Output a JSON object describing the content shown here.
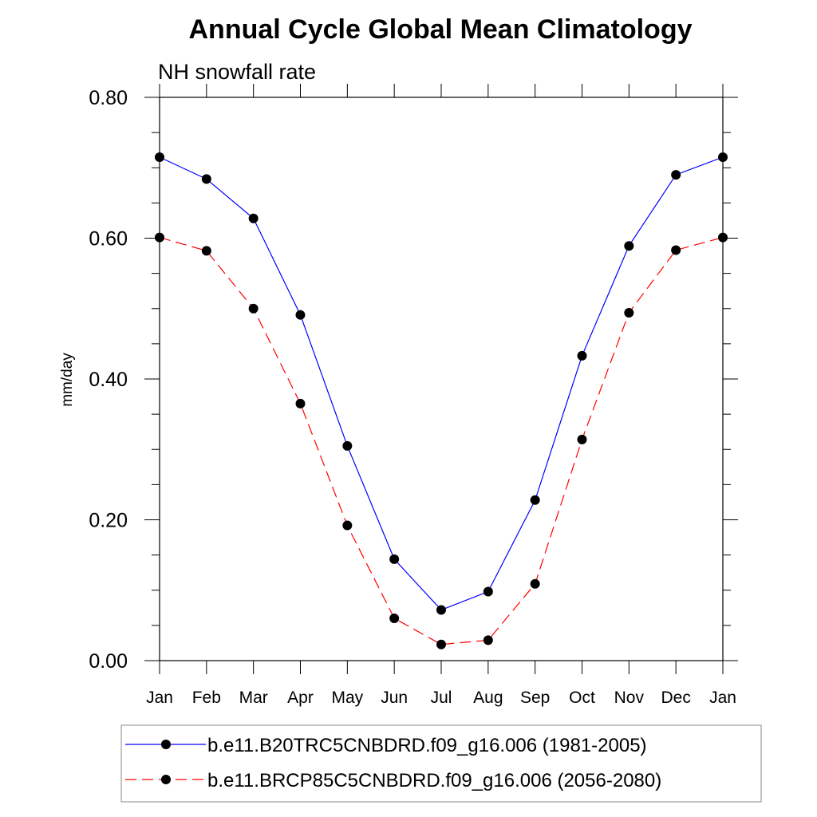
{
  "chart_data": {
    "type": "line",
    "title": "Annual Cycle Global Mean Climatology",
    "subtitle": "NH snowfall rate",
    "xlabel": "",
    "ylabel": "mm/day",
    "categories": [
      "Jan",
      "Feb",
      "Mar",
      "Apr",
      "May",
      "Jun",
      "Jul",
      "Aug",
      "Sep",
      "Oct",
      "Nov",
      "Dec",
      "Jan"
    ],
    "ylim": [
      0.0,
      0.8
    ],
    "yticks": [
      0.0,
      0.2,
      0.4,
      0.6,
      0.8
    ],
    "ytick_labels": [
      "0.00",
      "0.20",
      "0.40",
      "0.60",
      "0.80"
    ],
    "yminor_step": 0.05,
    "grid": false,
    "legend_position": "bottom",
    "series": [
      {
        "name": "b.e11.B20TRC5CNBDRD.f09_g16.006 (1981-2005)",
        "color": "#0000ff",
        "dash": "solid",
        "marker": "filled-circle",
        "values": [
          0.715,
          0.684,
          0.628,
          0.491,
          0.305,
          0.144,
          0.072,
          0.098,
          0.228,
          0.433,
          0.589,
          0.69,
          0.715
        ]
      },
      {
        "name": "b.e11.BRCP85C5CNBDRD.f09_g16.006 (2056-2080)",
        "color": "#ff0000",
        "dash": "dashed",
        "marker": "filled-circle",
        "values": [
          0.601,
          0.582,
          0.5,
          0.365,
          0.192,
          0.06,
          0.023,
          0.029,
          0.109,
          0.314,
          0.494,
          0.583,
          0.601
        ]
      }
    ]
  }
}
